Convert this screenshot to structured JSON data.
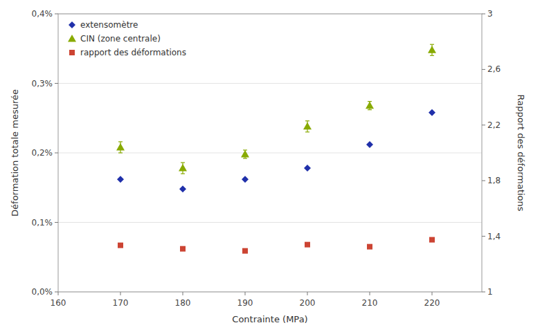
{
  "chart_data": {
    "type": "scatter",
    "x_label": "Contrainte (MPa)",
    "y_label": "Déformation totale mesurée",
    "y2_label": "Rapport des déformations",
    "x": [
      170,
      180,
      190,
      200,
      210,
      220
    ],
    "series": [
      {
        "name": "extensomètre",
        "color": "#2030aa",
        "marker": "diamond",
        "values": [
          0.00162,
          0.00148,
          0.00162,
          0.00178,
          0.00212,
          0.00258
        ]
      },
      {
        "name": "CIN (zone centrale)",
        "color": "#88aa00",
        "marker": "triangle",
        "values": [
          0.00208,
          0.00178,
          0.00198,
          0.00238,
          0.00268,
          0.00348
        ],
        "errors": [
          8e-05,
          8e-05,
          6e-05,
          8e-05,
          6e-05,
          8e-05
        ]
      },
      {
        "name": "rapport des déformations",
        "color": "#cc4433",
        "marker": "square",
        "axis": "y2",
        "values": [
          1.335,
          1.31,
          1.295,
          1.34,
          1.325,
          1.375
        ]
      }
    ],
    "xlim": [
      160,
      228
    ],
    "xticks": [
      160,
      170,
      180,
      190,
      200,
      210,
      220
    ],
    "ylim": [
      0.0,
      0.004
    ],
    "yticks": [
      {
        "value": 0.0,
        "label": "0,0%"
      },
      {
        "value": 0.001,
        "label": "0,1%"
      },
      {
        "value": 0.002,
        "label": "0,2%"
      },
      {
        "value": 0.003,
        "label": "0,3%"
      },
      {
        "value": 0.004,
        "label": "0,4%"
      }
    ],
    "y2lim": [
      1.0,
      3.0
    ],
    "y2ticks": [
      1,
      {
        "value": 1.4,
        "label": "1,4"
      },
      {
        "value": 1.8,
        "label": "1,8"
      },
      {
        "value": 2.2,
        "label": "2,2"
      },
      {
        "value": 2.6,
        "label": "2,6"
      },
      3
    ],
    "grid": true,
    "legend": "upper-left"
  }
}
